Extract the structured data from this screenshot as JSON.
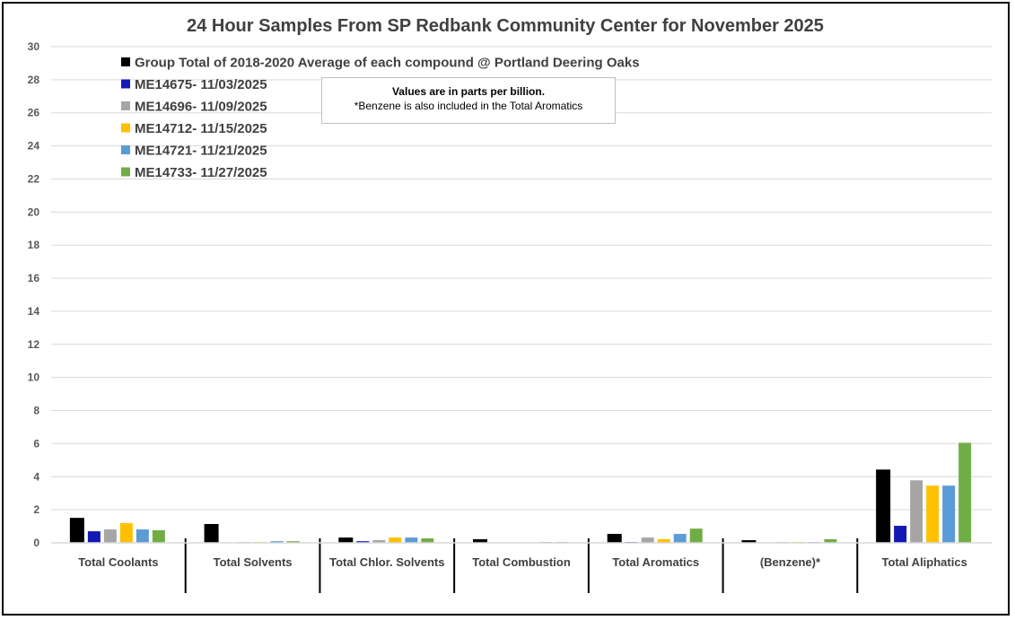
{
  "chart_data": {
    "type": "bar",
    "title": "24 Hour Samples From SP Redbank Community Center for November 2025",
    "xlabel": "",
    "ylabel": "",
    "ylim": [
      0,
      30
    ],
    "yticks": [
      0,
      2,
      4,
      6,
      8,
      10,
      12,
      14,
      16,
      18,
      20,
      22,
      24,
      26,
      28,
      30
    ],
    "grid": true,
    "legend_placement": "top-left",
    "categories": [
      "Total Coolants",
      "Total Solvents",
      "Total Chlor. Solvents",
      "Total Combustion",
      "Total Aromatics",
      "(Benzene)*",
      "Total Aliphatics"
    ],
    "series": [
      {
        "name": "Group Total of 2018-2020 Average of each compound @ Portland Deering Oaks",
        "color": "#000000",
        "values": [
          1.51,
          1.14,
          0.32,
          0.22,
          0.54,
          0.16,
          4.43
        ]
      },
      {
        "name": "ME14675- 11/03/2025",
        "color": "#1319b5",
        "values": [
          0.7,
          0,
          0.1,
          0,
          0.05,
          0,
          1.03
        ]
      },
      {
        "name": "ME14696- 11/09/2025",
        "color": "#a5a5a5",
        "values": [
          0.81,
          0.05,
          0.16,
          0,
          0.32,
          0.05,
          3.78
        ]
      },
      {
        "name": "ME14712- 11/15/2025",
        "color": "#ffc000",
        "values": [
          1.19,
          0.05,
          0.32,
          0,
          0.22,
          0.05,
          3.46
        ]
      },
      {
        "name": "ME14721- 11/21/2025",
        "color": "#5b9bd5",
        "values": [
          0.81,
          0.1,
          0.32,
          0.05,
          0.54,
          0.05,
          3.46
        ]
      },
      {
        "name": "ME14733- 11/27/2025",
        "color": "#70ad47",
        "values": [
          0.76,
          0.1,
          0.27,
          0.05,
          0.86,
          0.22,
          6.05
        ]
      }
    ],
    "annotation": {
      "line1": "Values are in parts per billion.",
      "line2": "*Benzene is also included in the Total Aromatics"
    }
  }
}
